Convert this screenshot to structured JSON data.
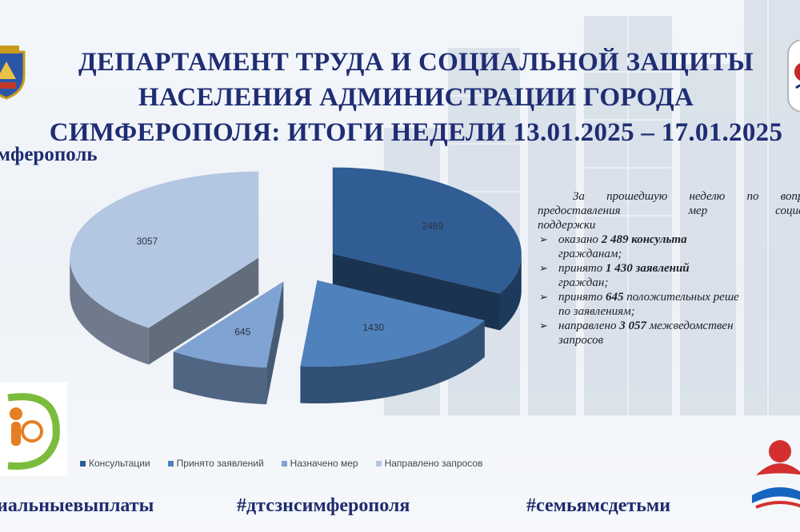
{
  "header": {
    "title_lines": [
      "ДЕПАРТАМЕНТ ТРУДА И СОЦИАЛЬНОЙ ЗАЩИТЫ",
      "НАСЕЛЕНИЯ АДМИНИСТРАЦИИ ГОРОДА",
      "СИМФЕРОПОЛЯ: ИТОГИ НЕДЕЛИ 13.01.2025 – 17.01.2025"
    ],
    "city_label": "мферополь"
  },
  "chart_data": {
    "type": "pie",
    "categories": [
      "Консультации",
      "Принято заявлений",
      "Назначено мер",
      "Направлено запросов"
    ],
    "values": [
      2489,
      1430,
      645,
      3057
    ],
    "colors": [
      "#2f5d94",
      "#4f81bd",
      "#7fa3d2",
      "#b3c6e2"
    ],
    "legend_position": "bottom",
    "exploded": true,
    "three_d": true
  },
  "summary": {
    "intro_line1": "За прошедшую неделю по вопро",
    "intro_line2": "предоставления мер социал",
    "intro_line3": "поддержки",
    "items": [
      {
        "pre": "оказано ",
        "bold": "2 489",
        "post": " консульта",
        "cont": "гражданам;"
      },
      {
        "pre": "принято ",
        "bold": "1 430",
        "post": " заявлений",
        "cont": "граждан;"
      },
      {
        "pre": "принято ",
        "bold": "645",
        "post": " положительных реше",
        "cont": "по заявлениям;"
      },
      {
        "pre": "направлено ",
        "bold": "3 057",
        "post": " межведомствен",
        "cont": "запросов"
      }
    ],
    "bullet_icon": "arrow-bullet-icon"
  },
  "footer": {
    "hashtags": [
      "иальныевыплаты",
      "#дтсзнсимферополя",
      "#семьямсдетьми"
    ]
  },
  "icons": {
    "coat_of_arms": "coat-of-arms-icon",
    "family_logo": "family-logo-icon",
    "family_book_logo": "family-book-logo-icon",
    "department_emblem": "department-emblem-icon"
  }
}
